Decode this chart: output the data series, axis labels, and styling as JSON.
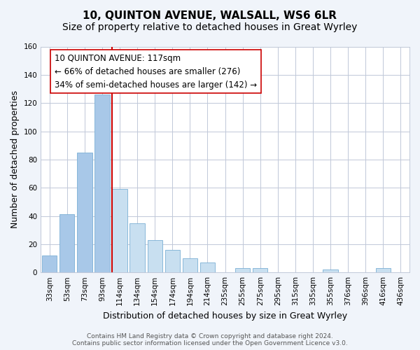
{
  "title": "10, QUINTON AVENUE, WALSALL, WS6 6LR",
  "subtitle": "Size of property relative to detached houses in Great Wyrley",
  "xlabel": "Distribution of detached houses by size in Great Wyrley",
  "ylabel": "Number of detached properties",
  "bar_labels": [
    "33sqm",
    "53sqm",
    "73sqm",
    "93sqm",
    "114sqm",
    "134sqm",
    "154sqm",
    "174sqm",
    "194sqm",
    "214sqm",
    "235sqm",
    "255sqm",
    "275sqm",
    "295sqm",
    "315sqm",
    "335sqm",
    "355sqm",
    "376sqm",
    "396sqm",
    "416sqm",
    "436sqm"
  ],
  "bar_values": [
    12,
    41,
    85,
    126,
    59,
    35,
    23,
    16,
    10,
    7,
    0,
    3,
    3,
    0,
    0,
    0,
    2,
    0,
    0,
    3,
    0
  ],
  "bar_colors_left": "#a8c8e8",
  "bar_colors_right": "#c8dff0",
  "bar_edge_color": "#7aafd4",
  "vline_pos": 3.575,
  "vline_color": "#cc0000",
  "annotation_text": "10 QUINTON AVENUE: 117sqm\n← 66% of detached houses are smaller (276)\n34% of semi-detached houses are larger (142) →",
  "annotation_box_color": "white",
  "annotation_box_edge": "#cc0000",
  "ylim": [
    0,
    160
  ],
  "yticks": [
    0,
    20,
    40,
    60,
    80,
    100,
    120,
    140,
    160
  ],
  "footer": "Contains HM Land Registry data © Crown copyright and database right 2024.\nContains public sector information licensed under the Open Government Licence v3.0.",
  "background_color": "#f0f4fa",
  "plot_bg_color": "white",
  "grid_color": "#c0c8d8",
  "title_fontsize": 11,
  "subtitle_fontsize": 10,
  "xlabel_fontsize": 9,
  "ylabel_fontsize": 9,
  "tick_fontsize": 7.5,
  "annotation_fontsize": 8.5,
  "footer_fontsize": 6.5
}
